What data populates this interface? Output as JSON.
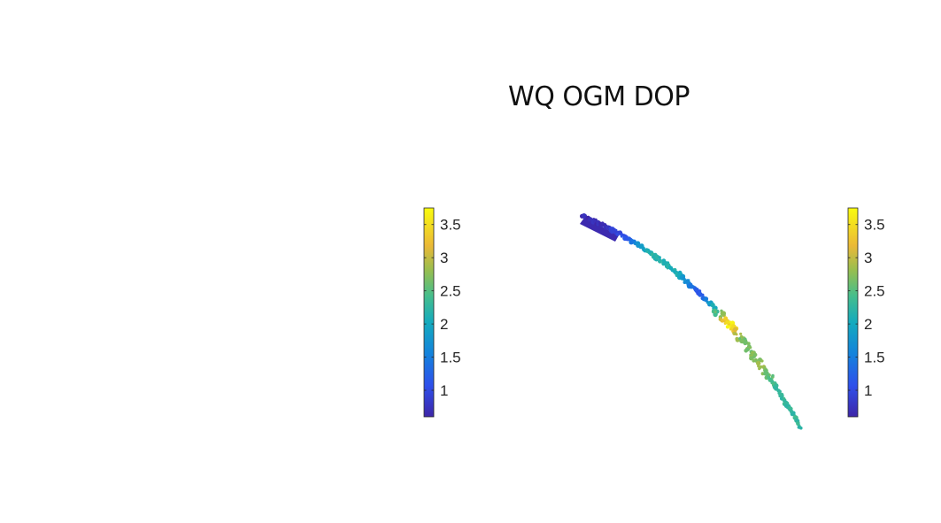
{
  "chart_data": {
    "type": "scatter",
    "title": "WQ OGM DOP",
    "colormap": "parula",
    "colors": {
      "min": "#3e26a8",
      "blue": "#1e6ff0",
      "teal": "#2eb7a4",
      "green": "#7bbf5a",
      "orange": "#f8ba3d",
      "max": "#f9fb0e"
    },
    "colorbars": [
      {
        "name": "left-colorbar",
        "clim": [
          0.6,
          3.75
        ],
        "ticks": [
          1,
          1.5,
          2,
          2.5,
          3,
          3.5
        ],
        "tick_labels": [
          "1",
          "1.5",
          "2",
          "2.5",
          "3",
          "3.5"
        ]
      },
      {
        "name": "right-colorbar",
        "clim": [
          0.6,
          3.75
        ],
        "ticks": [
          1,
          1.5,
          2,
          2.5,
          3,
          3.5
        ],
        "tick_labels": [
          "1",
          "1.5",
          "2",
          "2.5",
          "3",
          "3.5"
        ]
      }
    ],
    "track": {
      "description_value": "DOP along trajectory",
      "value_progression": [
        {
          "t": 0.0,
          "value": 0.65
        },
        {
          "t": 0.08,
          "value": 0.7
        },
        {
          "t": 0.18,
          "value": 1.1
        },
        {
          "t": 0.28,
          "value": 2.2
        },
        {
          "t": 0.4,
          "value": 2.1
        },
        {
          "t": 0.5,
          "value": 1.05
        },
        {
          "t": 0.58,
          "value": 2.4
        },
        {
          "t": 0.64,
          "value": 3.7
        },
        {
          "t": 0.7,
          "value": 2.6
        },
        {
          "t": 0.8,
          "value": 2.8
        },
        {
          "t": 0.88,
          "value": 2.3
        },
        {
          "t": 1.0,
          "value": 2.3
        }
      ]
    }
  }
}
